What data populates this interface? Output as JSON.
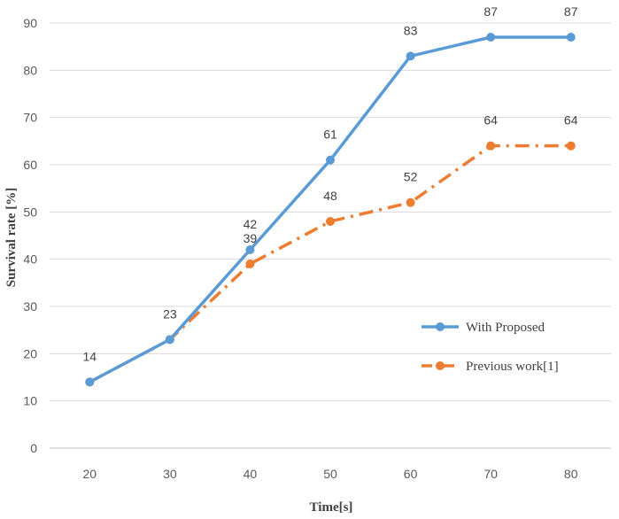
{
  "chart_data": {
    "type": "line",
    "x": [
      20,
      30,
      40,
      50,
      60,
      70,
      80
    ],
    "series": [
      {
        "name": "With Proposed",
        "values": [
          14,
          23,
          42,
          61,
          83,
          87,
          87
        ],
        "color": "#5B9BD5",
        "style": "solid"
      },
      {
        "name": "Previous work[1]",
        "values": [
          14,
          23,
          39,
          48,
          52,
          64,
          64
        ],
        "color": "#ED7D31",
        "style": "dash-dot"
      }
    ],
    "xlabel": "Time[s]",
    "ylabel": "Survival rate [%]",
    "ylim": [
      0,
      90
    ],
    "ytick_step": 10,
    "grid": "horizontal",
    "legend_position": "right-center"
  }
}
